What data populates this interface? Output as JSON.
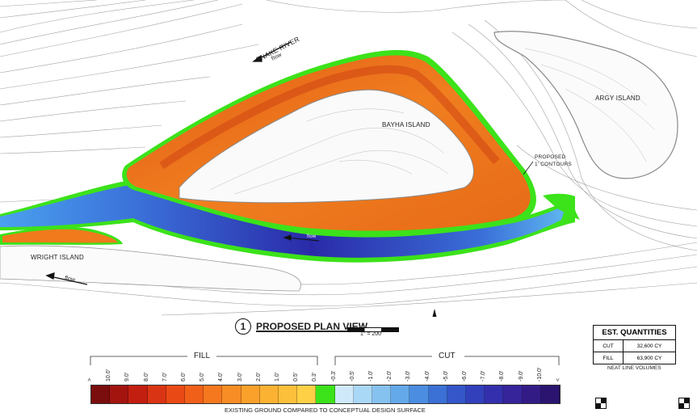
{
  "map": {
    "labels": {
      "snake_river": "SNAKE RIVER",
      "flow_top": "flow",
      "flow_channel": "flow",
      "flow_bottom": "flow",
      "bayha_island": "BAYHA ISLAND",
      "argy_island": "ARGY ISLAND",
      "wright_island": "WRIGHT ISLAND",
      "proposed_contours_1": "PROPOSED",
      "proposed_contours_2": "1' CONTOURS"
    },
    "colors": {
      "water_cut_deep": "#2a1f9e",
      "water_cut_mid": "#3a67d6",
      "water_cut_shallow": "#5fb0ef",
      "fill_mid": "#f07a1c",
      "fill_deep": "#c93a12",
      "zero_band": "#3ce21a",
      "contour_line": "#9a9a9a"
    }
  },
  "plan_view": {
    "number": "1",
    "title": "PROPOSED PLAN VIEW",
    "scale": "1\" = 200'"
  },
  "quantities": {
    "title": "EST. QUANTITIES",
    "rows": [
      {
        "label": "CUT",
        "value": "32,600 CY"
      },
      {
        "label": "FILL",
        "value": "63,900 CY"
      }
    ],
    "note": "NEAT LINE VOLUMES"
  },
  "legend": {
    "fill_label": "FILL",
    "cut_label": "CUT",
    "caption": "EXISTING GROUND COMPARED TO CONCEPTUAL DESIGN SURFACE",
    "ticks": [
      ">",
      "10.0'",
      "9.0'",
      "8.0'",
      "7.0'",
      "6.0'",
      "5.0'",
      "4.0'",
      "3.0'",
      "2.0'",
      "1.0'",
      "0.5'",
      "0.3'",
      "-0.3'",
      "-0.5'",
      "-1.0'",
      "-2.0'",
      "-3.0'",
      "-4.0'",
      "-5.0'",
      "-6.0'",
      "-7.0'",
      "-8.0'",
      "-9.0'",
      "-10.0'",
      "<"
    ],
    "colors": [
      "#7a0d0d",
      "#a3140f",
      "#c21f10",
      "#d93514",
      "#e94a15",
      "#f16019",
      "#f5781f",
      "#f78d24",
      "#f9a12b",
      "#fbb232",
      "#fcc03b",
      "#fdd045",
      "#3ce21a",
      "#cfe9fb",
      "#a9d7f6",
      "#86c2f0",
      "#64a9e9",
      "#4b8de0",
      "#3b70d5",
      "#3456c9",
      "#3240bc",
      "#3430ad",
      "#35249a",
      "#331b86",
      "#2a1470"
    ]
  }
}
